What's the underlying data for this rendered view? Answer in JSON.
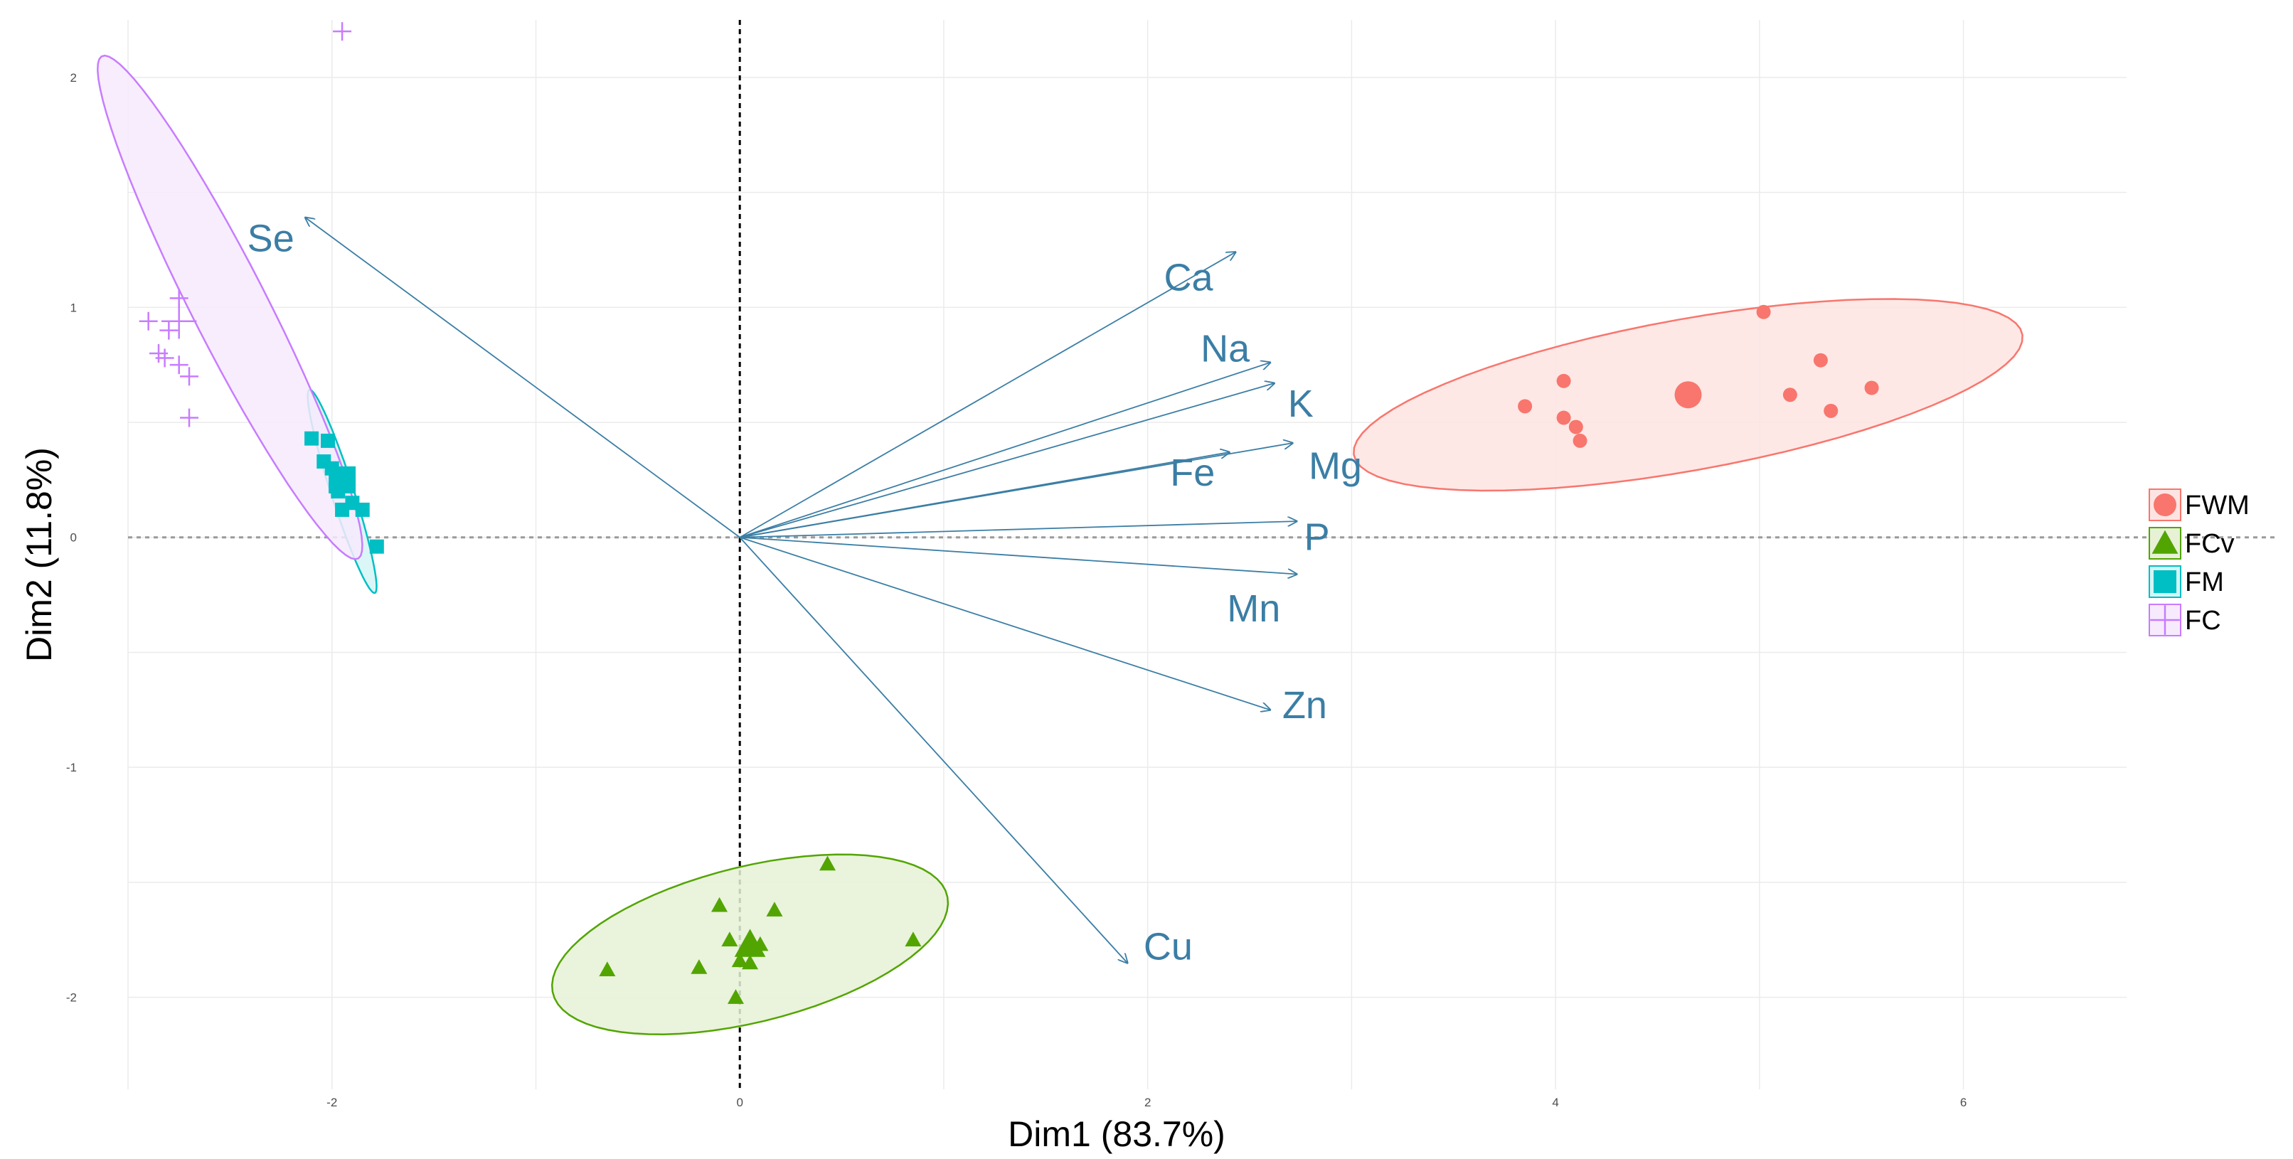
{
  "chart_data": {
    "type": "scatter",
    "title": "",
    "xlabel": "Dim1 (83.7%)",
    "ylabel": "Dim2 (11.8%)",
    "xlim": [
      -3.0,
      6.8
    ],
    "ylim": [
      -2.4,
      2.25
    ],
    "x_ticks": [
      -2,
      0,
      2,
      4,
      6
    ],
    "y_ticks": [
      -2,
      -1,
      0,
      1,
      2
    ],
    "x_tick_labels": [
      "-2",
      "0",
      "2",
      "4",
      "6"
    ],
    "y_tick_labels": [
      "-2",
      "-1",
      "0",
      "1",
      "2"
    ],
    "grid": true,
    "legend_position": "right",
    "series": [
      {
        "name": "FWM",
        "marker": "circle",
        "color": "#f8766d",
        "fill": "#fde4e2",
        "centroid": [
          4.65,
          0.62
        ],
        "ellipse": {
          "cx": 4.65,
          "cy": 0.62,
          "rx": 1.66,
          "ry": 0.33,
          "angle_deg": 9
        },
        "points": [
          [
            5.02,
            0.98
          ],
          [
            4.04,
            0.68
          ],
          [
            5.3,
            0.77
          ],
          [
            3.85,
            0.57
          ],
          [
            5.15,
            0.62
          ],
          [
            5.55,
            0.65
          ],
          [
            4.04,
            0.52
          ],
          [
            4.1,
            0.48
          ],
          [
            4.12,
            0.42
          ],
          [
            5.35,
            0.55
          ]
        ]
      },
      {
        "name": "FCv",
        "marker": "triangle",
        "color": "#52a500",
        "fill": "#e6f1d6",
        "centroid": [
          0.05,
          -1.77
        ],
        "ellipse": {
          "cx": 0.05,
          "cy": -1.77,
          "rx": 0.99,
          "ry": 0.34,
          "angle_deg": 12
        },
        "points": [
          [
            0.43,
            -1.42
          ],
          [
            -0.1,
            -1.6
          ],
          [
            0.17,
            -1.62
          ],
          [
            -0.05,
            -1.75
          ],
          [
            -0.65,
            -1.88
          ],
          [
            -0.2,
            -1.87
          ],
          [
            0.85,
            -1.75
          ],
          [
            0.0,
            -1.84
          ],
          [
            0.05,
            -1.85
          ],
          [
            -0.02,
            -2.0
          ],
          [
            0.1,
            -1.77
          ]
        ]
      },
      {
        "name": "FM",
        "marker": "square",
        "color": "#00bfc4",
        "fill": "#d5f4f5",
        "centroid": [
          -1.95,
          0.25
        ],
        "ellipse": {
          "cx": -1.95,
          "cy": 0.2,
          "rx": 0.47,
          "ry": 0.055,
          "angle_deg": -70
        },
        "points": [
          [
            -2.1,
            0.43
          ],
          [
            -2.02,
            0.42
          ],
          [
            -2.04,
            0.33
          ],
          [
            -2.0,
            0.3
          ],
          [
            -1.97,
            0.2
          ],
          [
            -1.92,
            0.25
          ],
          [
            -1.95,
            0.12
          ],
          [
            -1.9,
            0.15
          ],
          [
            -1.85,
            0.12
          ],
          [
            -1.78,
            -0.04
          ]
        ]
      },
      {
        "name": "FC",
        "marker": "cross",
        "color": "#c77cff",
        "fill": "#f7eafd",
        "centroid": [
          -2.75,
          0.94
        ],
        "ellipse": {
          "cx": -2.5,
          "cy": 1.0,
          "rx": 1.26,
          "ry": 0.18,
          "angle_deg": -60
        },
        "points": [
          [
            -1.95,
            2.2
          ],
          [
            -2.75,
            1.04
          ],
          [
            -2.9,
            0.94
          ],
          [
            -2.8,
            0.9
          ],
          [
            -2.85,
            0.8
          ],
          [
            -2.82,
            0.78
          ],
          [
            -2.75,
            0.75
          ],
          [
            -2.7,
            0.7
          ],
          [
            -2.7,
            0.52
          ]
        ]
      }
    ],
    "variables": [
      {
        "name": "Se",
        "x": -2.13,
        "y": 1.39,
        "label_x": -2.3,
        "label_y": 1.3
      },
      {
        "name": "Ca",
        "x": 2.43,
        "y": 1.24,
        "label_x": 2.2,
        "label_y": 1.13
      },
      {
        "name": "Na",
        "x": 2.6,
        "y": 0.76,
        "label_x": 2.38,
        "label_y": 0.82
      },
      {
        "name": "K",
        "x": 2.62,
        "y": 0.67,
        "label_x": 2.75,
        "label_y": 0.58
      },
      {
        "name": "Fe",
        "x": 2.4,
        "y": 0.37,
        "label_x": 2.22,
        "label_y": 0.28
      },
      {
        "name": "Mg",
        "x": 2.71,
        "y": 0.41,
        "label_x": 2.92,
        "label_y": 0.31
      },
      {
        "name": "P",
        "x": 2.73,
        "y": 0.07,
        "label_x": 2.83,
        "label_y": 0.0
      },
      {
        "name": "Mn",
        "x": 2.73,
        "y": -0.16,
        "label_x": 2.52,
        "label_y": -0.31
      },
      {
        "name": "Zn",
        "x": 2.6,
        "y": -0.75,
        "label_x": 2.77,
        "label_y": -0.73
      },
      {
        "name": "Cu",
        "x": 1.9,
        "y": -1.85,
        "label_x": 2.1,
        "label_y": -1.78
      }
    ]
  }
}
